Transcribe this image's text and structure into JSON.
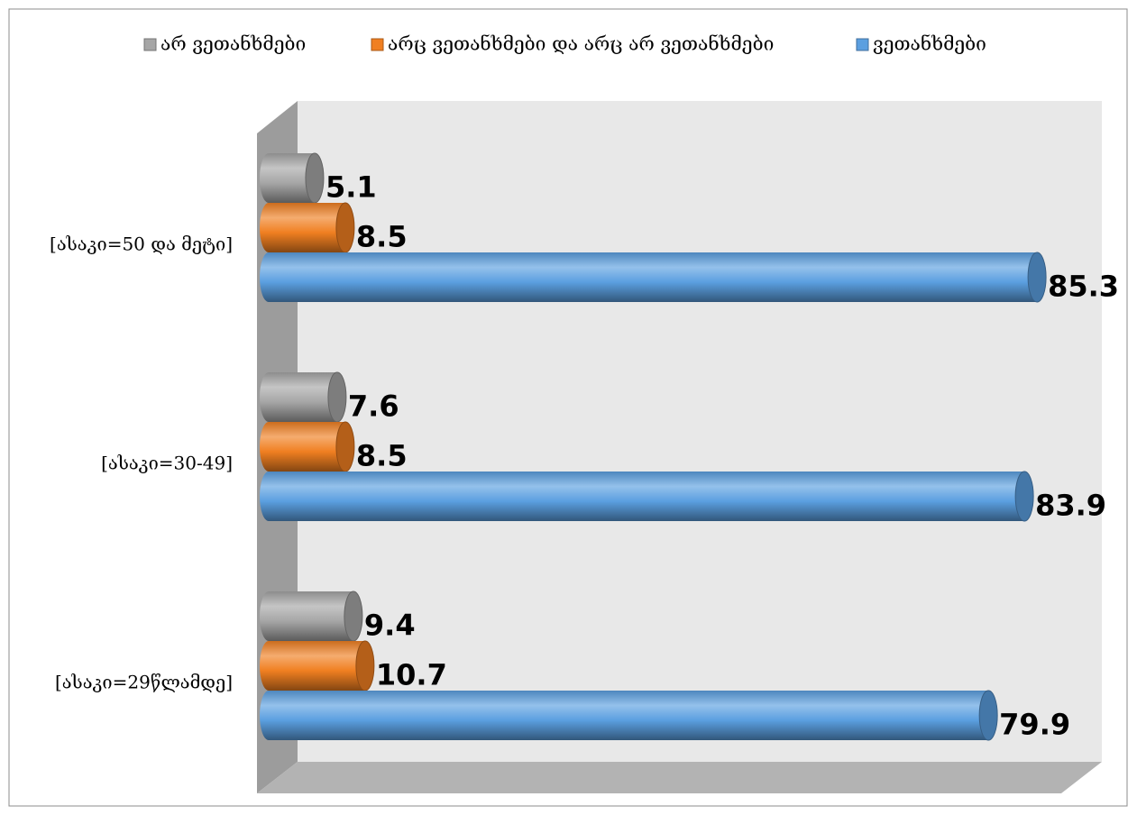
{
  "chart_data": {
    "type": "bar",
    "orientation": "horizontal",
    "style": "3d-cylinder",
    "categories": [
      "[ასაკი=50 და მეტი]",
      "[ასაკი=30-49]",
      "[ასაკი=29წლამდე]"
    ],
    "series": [
      {
        "name": "არ ვეთანხმები",
        "color": "#a6a6a6",
        "values": [
          5.1,
          7.6,
          9.4
        ]
      },
      {
        "name": "არც ვეთანხმები და არც არ ვეთანხმები",
        "color": "#f07f21",
        "values": [
          8.5,
          8.5,
          10.7
        ]
      },
      {
        "name": "ვეთანხმები",
        "color": "#5b9fe0",
        "values": [
          85.3,
          83.9,
          79.9
        ]
      }
    ],
    "xlim": [
      0,
      95
    ],
    "legend": "top"
  }
}
